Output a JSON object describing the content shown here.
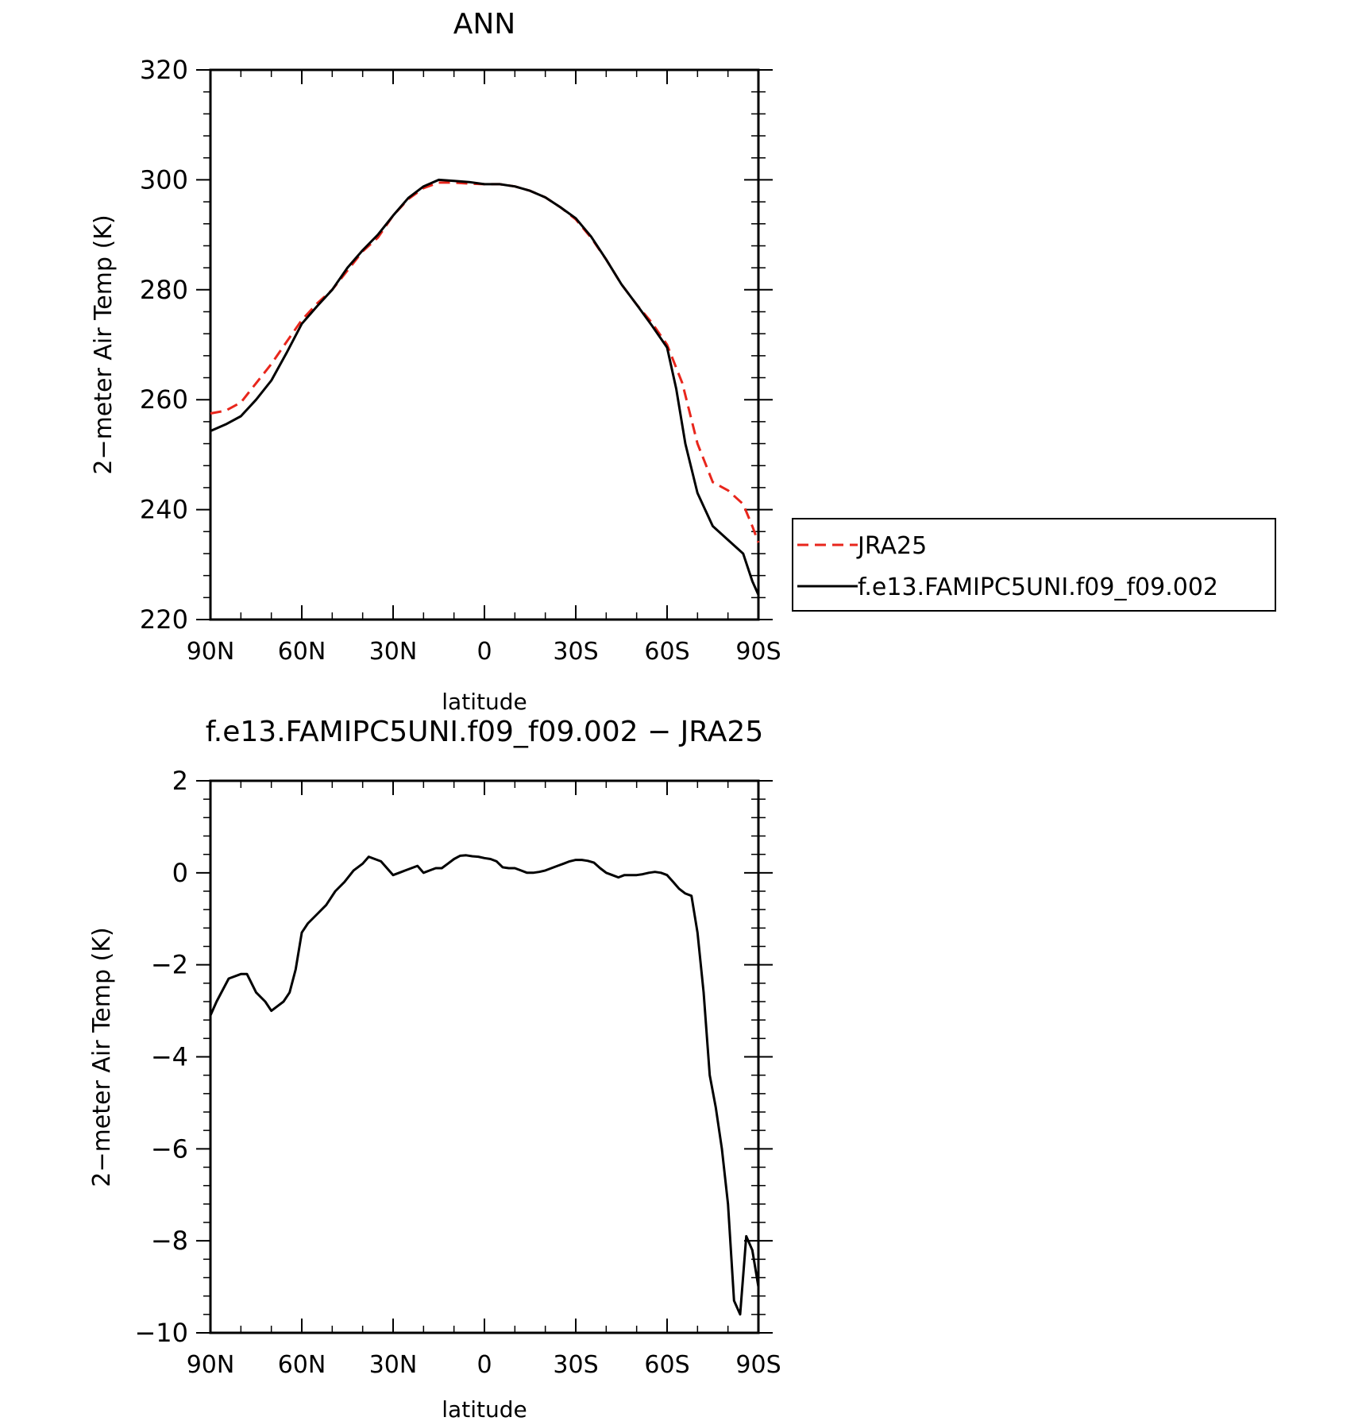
{
  "chart_data": [
    {
      "type": "line",
      "title": "ANN",
      "xlabel": "latitude",
      "ylabel": "2−meter Air Temp (K)",
      "xlim": [
        90,
        -90
      ],
      "ylim": [
        220,
        320
      ],
      "x_ticks": [
        {
          "value": 90,
          "label": "90N"
        },
        {
          "value": 60,
          "label": "60N"
        },
        {
          "value": 30,
          "label": "30N"
        },
        {
          "value": 0,
          "label": "0"
        },
        {
          "value": -30,
          "label": "30S"
        },
        {
          "value": -60,
          "label": "60S"
        },
        {
          "value": -90,
          "label": "90S"
        }
      ],
      "y_ticks": [
        {
          "value": 220,
          "label": "220"
        },
        {
          "value": 240,
          "label": "240"
        },
        {
          "value": 260,
          "label": "260"
        },
        {
          "value": 280,
          "label": "280"
        },
        {
          "value": 300,
          "label": "300"
        },
        {
          "value": 320,
          "label": "320"
        }
      ],
      "legend": {
        "placement": "right"
      },
      "series": [
        {
          "name": "JRA25",
          "color": "#e8261c",
          "dash": "dashed",
          "x": [
            90,
            85,
            80,
            75,
            70,
            65,
            60,
            55,
            50,
            45,
            40,
            35,
            30,
            25,
            20,
            15,
            10,
            5,
            0,
            -5,
            -10,
            -15,
            -20,
            -25,
            -30,
            -35,
            -40,
            -45,
            -50,
            -55,
            -60,
            -65,
            -70,
            -75,
            -80,
            -85,
            -88,
            -90
          ],
          "y": [
            257.5,
            258,
            259.5,
            263,
            266.5,
            270.5,
            274.5,
            277.5,
            280,
            283.5,
            287,
            289.5,
            293.5,
            296.5,
            298.5,
            299.5,
            299.5,
            299.3,
            299.2,
            299.2,
            298.8,
            298,
            296.8,
            295,
            292.8,
            289.5,
            285.5,
            281,
            277.3,
            274,
            270,
            263,
            252,
            245,
            243.5,
            241,
            237,
            234
          ]
        },
        {
          "name": "f.e13.FAMIPC5UNI.f09_f09.002",
          "color": "#000000",
          "dash": "solid",
          "x": [
            90,
            85,
            80,
            75,
            70,
            65,
            60,
            55,
            50,
            45,
            40,
            35,
            30,
            25,
            20,
            15,
            10,
            5,
            0,
            -5,
            -10,
            -15,
            -20,
            -25,
            -30,
            -35,
            -40,
            -45,
            -50,
            -55,
            -60,
            -63,
            -66,
            -70,
            -75,
            -80,
            -85,
            -88,
            -90
          ],
          "y": [
            254.3,
            255.5,
            257,
            260,
            263.5,
            268.5,
            273.8,
            277,
            280,
            284,
            287.2,
            290,
            293.5,
            296.7,
            298.8,
            300,
            299.8,
            299.6,
            299.2,
            299.2,
            298.8,
            298,
            296.8,
            295,
            293,
            289.7,
            285.5,
            281,
            277.3,
            273.5,
            269.5,
            262,
            252,
            243,
            237,
            234.5,
            232,
            227,
            224.5
          ]
        }
      ]
    },
    {
      "type": "line",
      "title": "f.e13.FAMIPC5UNI.f09_f09.002 − JRA25",
      "xlabel": "latitude",
      "ylabel": "2−meter Air Temp (K)",
      "xlim": [
        90,
        -90
      ],
      "ylim": [
        -10,
        2
      ],
      "x_ticks": [
        {
          "value": 90,
          "label": "90N"
        },
        {
          "value": 60,
          "label": "60N"
        },
        {
          "value": 30,
          "label": "30N"
        },
        {
          "value": 0,
          "label": "0"
        },
        {
          "value": -30,
          "label": "30S"
        },
        {
          "value": -60,
          "label": "60S"
        },
        {
          "value": -90,
          "label": "90S"
        }
      ],
      "y_ticks": [
        {
          "value": -10,
          "label": "−10"
        },
        {
          "value": -8,
          "label": "−8"
        },
        {
          "value": -6,
          "label": "−6"
        },
        {
          "value": -4,
          "label": "−4"
        },
        {
          "value": -2,
          "label": "−2"
        },
        {
          "value": 0,
          "label": "0"
        },
        {
          "value": 2,
          "label": "2"
        }
      ],
      "series": [
        {
          "color": "#000000",
          "dash": "solid",
          "x": [
            90,
            88,
            84,
            80,
            78,
            75,
            72,
            70,
            68,
            66,
            64,
            62,
            60,
            58,
            55,
            52,
            49,
            46,
            43,
            40,
            38,
            36,
            34,
            32,
            30,
            28,
            26,
            24,
            22,
            20,
            18,
            16,
            14,
            12,
            10,
            8,
            6,
            4,
            2,
            0,
            -2,
            -4,
            -6,
            -8,
            -10,
            -12,
            -14,
            -16,
            -18,
            -20,
            -22,
            -24,
            -26,
            -28,
            -30,
            -32,
            -34,
            -36,
            -38,
            -40,
            -42,
            -44,
            -46,
            -48,
            -50,
            -52,
            -54,
            -56,
            -58,
            -60,
            -62,
            -64,
            -66,
            -68,
            -70,
            -72,
            -74,
            -76,
            -78,
            -80,
            -82,
            -84,
            -86,
            -88,
            -90
          ],
          "y": [
            -3.1,
            -2.8,
            -2.3,
            -2.2,
            -2.2,
            -2.6,
            -2.8,
            -3.0,
            -2.9,
            -2.8,
            -2.6,
            -2.1,
            -1.3,
            -1.1,
            -0.9,
            -0.7,
            -0.4,
            -0.2,
            0.05,
            0.2,
            0.35,
            0.3,
            0.25,
            0.1,
            -0.05,
            0.0,
            0.05,
            0.1,
            0.15,
            0.0,
            0.05,
            0.1,
            0.1,
            0.2,
            0.3,
            0.37,
            0.38,
            0.36,
            0.35,
            0.32,
            0.3,
            0.25,
            0.12,
            0.1,
            0.1,
            0.05,
            0.0,
            0.0,
            0.02,
            0.05,
            0.1,
            0.15,
            0.2,
            0.25,
            0.28,
            0.28,
            0.26,
            0.22,
            0.1,
            0.0,
            -0.05,
            -0.1,
            -0.05,
            -0.05,
            -0.05,
            -0.03,
            0.0,
            0.02,
            0.0,
            -0.05,
            -0.2,
            -0.35,
            -0.45,
            -0.5,
            -1.3,
            -2.6,
            -4.4,
            -5.1,
            -6.0,
            -7.2,
            -9.3,
            -9.6,
            -7.9,
            -8.2,
            -9.0
          ]
        }
      ]
    }
  ]
}
